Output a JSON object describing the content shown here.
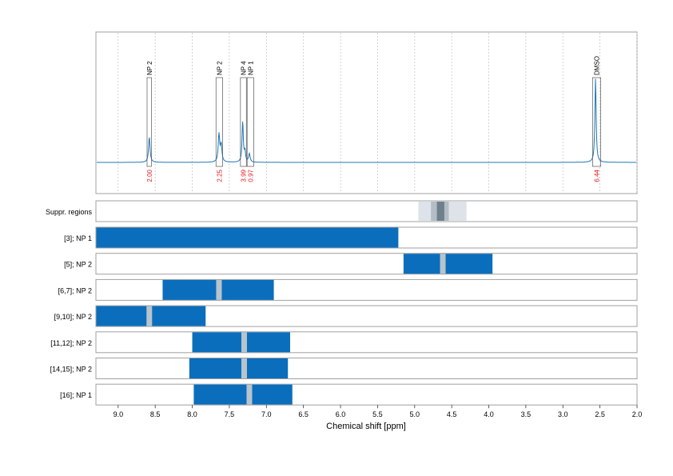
{
  "chart_data": {
    "type": "line",
    "xlabel": "Chemical shift [ppm]",
    "xlim": [
      9.3,
      2.0
    ],
    "xticks": [
      "9.0",
      "8.5",
      "8.0",
      "7.5",
      "7.0",
      "6.5",
      "6.0",
      "5.5",
      "5.0",
      "4.5",
      "4.0",
      "3.5",
      "3.0",
      "2.5",
      "2.0"
    ],
    "xtick_values": [
      9.0,
      8.5,
      8.0,
      7.5,
      7.0,
      6.5,
      6.0,
      5.5,
      5.0,
      4.5,
      4.0,
      3.5,
      3.0,
      2.5,
      2.0
    ],
    "grid": true,
    "spectrum": {
      "baseline": 0.02,
      "peaks": [
        {
          "ppm": 8.58,
          "height": 0.3,
          "width": 0.012
        },
        {
          "ppm": 7.64,
          "height": 0.33,
          "width": 0.012
        },
        {
          "ppm": 7.61,
          "height": 0.2,
          "width": 0.012
        },
        {
          "ppm": 7.32,
          "height": 0.48,
          "width": 0.01
        },
        {
          "ppm": 7.29,
          "height": 0.12,
          "width": 0.01
        },
        {
          "ppm": 7.23,
          "height": 0.1,
          "width": 0.012
        },
        {
          "ppm": 2.56,
          "height": 1.0,
          "width": 0.01
        }
      ]
    },
    "peak_annotations": [
      {
        "label": "NP 2",
        "integral": "2.00",
        "from": 8.61,
        "to": 8.55
      },
      {
        "label": "NP 2",
        "integral": "2.25",
        "from": 7.68,
        "to": 7.59
      },
      {
        "label": "NP 4",
        "integral": "3.99",
        "from": 7.35,
        "to": 7.27
      },
      {
        "label": "NP 1",
        "integral": "0.97",
        "from": 7.26,
        "to": 7.17
      },
      {
        "label": "DMSO",
        "integral": "6.44",
        "from": 2.6,
        "to": 2.49
      }
    ],
    "suppression_panel": {
      "label": "Suppr. regions",
      "regions": [
        {
          "from": 4.95,
          "to": 4.3,
          "level": 1
        },
        {
          "from": 4.78,
          "to": 4.54,
          "level": 2
        },
        {
          "from": 4.7,
          "to": 4.6,
          "level": 3
        }
      ]
    },
    "tracks": [
      {
        "label": "[3]; NP 1",
        "from": 9.3,
        "to": 5.22,
        "gaps": []
      },
      {
        "label": "[5]; NP 2",
        "from": 5.15,
        "to": 3.95,
        "gaps": [
          4.62
        ]
      },
      {
        "label": "[6,7]; NP 2",
        "from": 8.4,
        "to": 6.9,
        "gaps": [
          7.64
        ]
      },
      {
        "label": "[9,10]; NP 2",
        "from": 9.3,
        "to": 7.82,
        "gaps": [
          8.58
        ]
      },
      {
        "label": "[11,12]; NP 2",
        "from": 8.0,
        "to": 6.68,
        "gaps": [
          7.3
        ]
      },
      {
        "label": "[14,15]; NP 2",
        "from": 8.04,
        "to": 6.71,
        "gaps": [
          7.3
        ]
      },
      {
        "label": "[16]; NP 1",
        "from": 7.98,
        "to": 6.65,
        "gaps": [
          7.23
        ]
      }
    ],
    "colors": {
      "spectrum": "#1f77b4",
      "track_fill": "#0a6ebd",
      "gap": "#b8c4cc",
      "integral_text": "#e41a1c",
      "suppr_light": "#dde3e8",
      "suppr_mid": "#b3bdc6",
      "suppr_dark": "#6f7f8c",
      "panel_border": "#a0a0a0",
      "grid": "#c8c8c8"
    }
  }
}
